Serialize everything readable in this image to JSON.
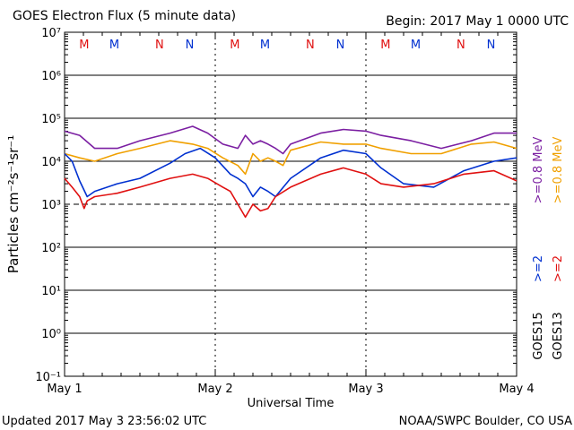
{
  "header": {
    "title": "GOES Electron Flux (5 minute data)",
    "begin": "Begin: 2017 May 1 0000 UTC"
  },
  "footer": {
    "updated": "Updated 2017 May  3 23:56:02 UTC",
    "credit": "NOAA/SWPC Boulder, CO USA"
  },
  "colors": {
    "goes15_ge0_8": "#7b1fa2",
    "goes13_ge0_8": "#f0a000",
    "goes15_ge2": "#0030d0",
    "goes13_ge2": "#e01010",
    "marker_m": "#e01010",
    "marker_n": "#0030d0"
  },
  "chart_data": {
    "type": "line",
    "title": "GOES Electron Flux (5 minute data)",
    "xlabel": "Universal Time",
    "ylabel": "Particles cm⁻²s⁻¹sr⁻¹",
    "x_ticks": [
      "May 1",
      "May 2",
      "May 3",
      "May 4"
    ],
    "xlim": [
      0,
      3
    ],
    "ylim_log10": [
      -1,
      7
    ],
    "yscale": "log",
    "y_ticks": [
      "10⁻¹",
      "10⁰",
      "10¹",
      "10²",
      "10³",
      "10⁴",
      "10⁵",
      "10⁶",
      "10⁷"
    ],
    "threshold": 1000,
    "legend_right": [
      {
        "label": ">=0.8  MeV",
        "color": "#7b1fa2",
        "group": "GOES15"
      },
      {
        "label": ">=0.8  MeV",
        "color": "#f0a000",
        "group": "GOES13"
      },
      {
        "label": ">=2",
        "color": "#0030d0",
        "group": "GOES15"
      },
      {
        "label": ">=2",
        "color": "#e01010",
        "group": "GOES13"
      }
    ],
    "legend_groups": [
      "GOES15",
      "GOES13"
    ],
    "markers": [
      {
        "x": 0.13,
        "label": "M",
        "color": "#e01010"
      },
      {
        "x": 0.33,
        "label": "M",
        "color": "#0030d0"
      },
      {
        "x": 0.63,
        "label": "N",
        "color": "#e01010"
      },
      {
        "x": 0.83,
        "label": "N",
        "color": "#0030d0"
      },
      {
        "x": 1.13,
        "label": "M",
        "color": "#e01010"
      },
      {
        "x": 1.33,
        "label": "M",
        "color": "#0030d0"
      },
      {
        "x": 1.63,
        "label": "N",
        "color": "#e01010"
      },
      {
        "x": 1.83,
        "label": "N",
        "color": "#0030d0"
      },
      {
        "x": 2.13,
        "label": "M",
        "color": "#e01010"
      },
      {
        "x": 2.33,
        "label": "M",
        "color": "#0030d0"
      },
      {
        "x": 2.63,
        "label": "N",
        "color": "#e01010"
      },
      {
        "x": 2.83,
        "label": "N",
        "color": "#0030d0"
      }
    ],
    "series": [
      {
        "name": "GOES15 >=0.8 MeV",
        "color": "#7b1fa2",
        "x": [
          0.0,
          0.1,
          0.2,
          0.35,
          0.5,
          0.7,
          0.85,
          0.95,
          1.05,
          1.15,
          1.2,
          1.25,
          1.3,
          1.35,
          1.4,
          1.45,
          1.5,
          1.7,
          1.85,
          2.0,
          2.1,
          2.3,
          2.5,
          2.7,
          2.85,
          3.0
        ],
        "y": [
          50000,
          40000,
          20000,
          20000,
          30000,
          45000,
          65000,
          45000,
          25000,
          20000,
          40000,
          25000,
          30000,
          25000,
          20000,
          15000,
          25000,
          45000,
          55000,
          50000,
          40000,
          30000,
          20000,
          30000,
          45000,
          45000
        ]
      },
      {
        "name": "GOES13 >=0.8 MeV",
        "color": "#f0a000",
        "x": [
          0.0,
          0.1,
          0.2,
          0.35,
          0.5,
          0.7,
          0.85,
          0.95,
          1.05,
          1.15,
          1.2,
          1.25,
          1.3,
          1.35,
          1.4,
          1.45,
          1.5,
          1.7,
          1.85,
          2.0,
          2.1,
          2.3,
          2.5,
          2.7,
          2.85,
          3.0
        ],
        "y": [
          15000,
          12000,
          10000,
          15000,
          20000,
          30000,
          25000,
          20000,
          12000,
          8000,
          5000,
          15000,
          10000,
          12000,
          10000,
          8000,
          18000,
          28000,
          25000,
          25000,
          20000,
          15000,
          15000,
          25000,
          28000,
          20000
        ]
      },
      {
        "name": "GOES15 >=2 MeV",
        "color": "#0030d0",
        "x": [
          0.0,
          0.05,
          0.1,
          0.15,
          0.2,
          0.35,
          0.5,
          0.7,
          0.8,
          0.9,
          1.0,
          1.1,
          1.15,
          1.2,
          1.25,
          1.3,
          1.35,
          1.4,
          1.5,
          1.7,
          1.85,
          2.0,
          2.1,
          2.25,
          2.45,
          2.65,
          2.85,
          3.0
        ],
        "y": [
          15000,
          10000,
          3500,
          1500,
          2000,
          3000,
          4000,
          9000,
          15000,
          20000,
          12000,
          5000,
          4000,
          3000,
          1500,
          2500,
          2000,
          1500,
          4000,
          12000,
          18000,
          15000,
          7000,
          3000,
          2500,
          6000,
          10000,
          12000
        ]
      },
      {
        "name": "GOES13 >=2 MeV",
        "color": "#e01010",
        "x": [
          0.0,
          0.05,
          0.1,
          0.13,
          0.15,
          0.2,
          0.35,
          0.5,
          0.7,
          0.85,
          0.95,
          1.05,
          1.1,
          1.15,
          1.2,
          1.25,
          1.3,
          1.35,
          1.4,
          1.5,
          1.7,
          1.85,
          2.0,
          2.1,
          2.25,
          2.45,
          2.65,
          2.85,
          3.0
        ],
        "y": [
          4000,
          2500,
          1500,
          800,
          1200,
          1500,
          1800,
          2500,
          4000,
          5000,
          4000,
          2500,
          2000,
          1000,
          500,
          1000,
          700,
          800,
          1500,
          2500,
          5000,
          7000,
          5000,
          3000,
          2500,
          3000,
          5000,
          6000,
          3500
        ]
      }
    ]
  }
}
